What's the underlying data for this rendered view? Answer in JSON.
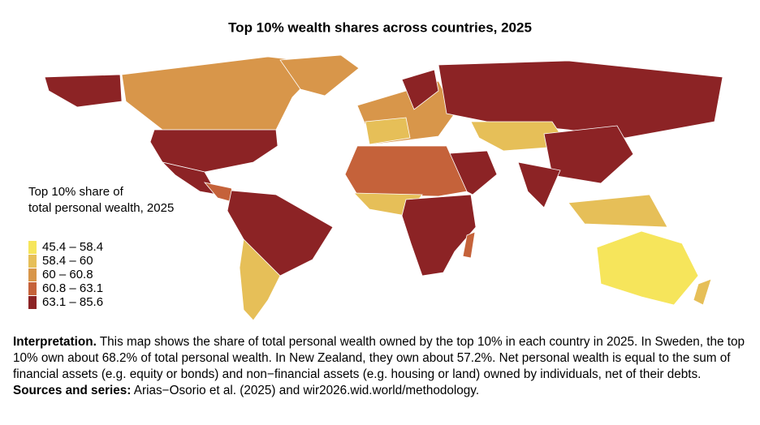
{
  "title": "Top 10% wealth shares across countries, 2025",
  "legend": {
    "title_line1": "Top 10% share of",
    "title_line2": "total personal wealth, 2025",
    "classes": [
      {
        "label": "45.4 – 58.4",
        "color": "#f6e55b"
      },
      {
        "label": "58.4 – 60",
        "color": "#e6bf58"
      },
      {
        "label": "60 – 60.8",
        "color": "#d8964a"
      },
      {
        "label": "60.8 – 63.1",
        "color": "#c5623a"
      },
      {
        "label": "63.1 – 85.6",
        "color": "#8c2325"
      }
    ]
  },
  "note": {
    "lead": "Interpretation.",
    "body": " This map shows the share of total personal wealth owned by the top 10% in each country in 2025. In Sweden, the top 10% own about 68.2% of total personal wealth. In New Zealand, they own about 57.2%. Net personal wealth is equal to the sum of financial assets (e.g. equity or bonds) and non−financial assets (e.g. housing or land) owned by individuals, net of their debts. ",
    "sources_lead": "Sources and series:",
    "sources": " Arias−Osorio et al. (2025) and wir2026.wid.world/methodology."
  }
}
